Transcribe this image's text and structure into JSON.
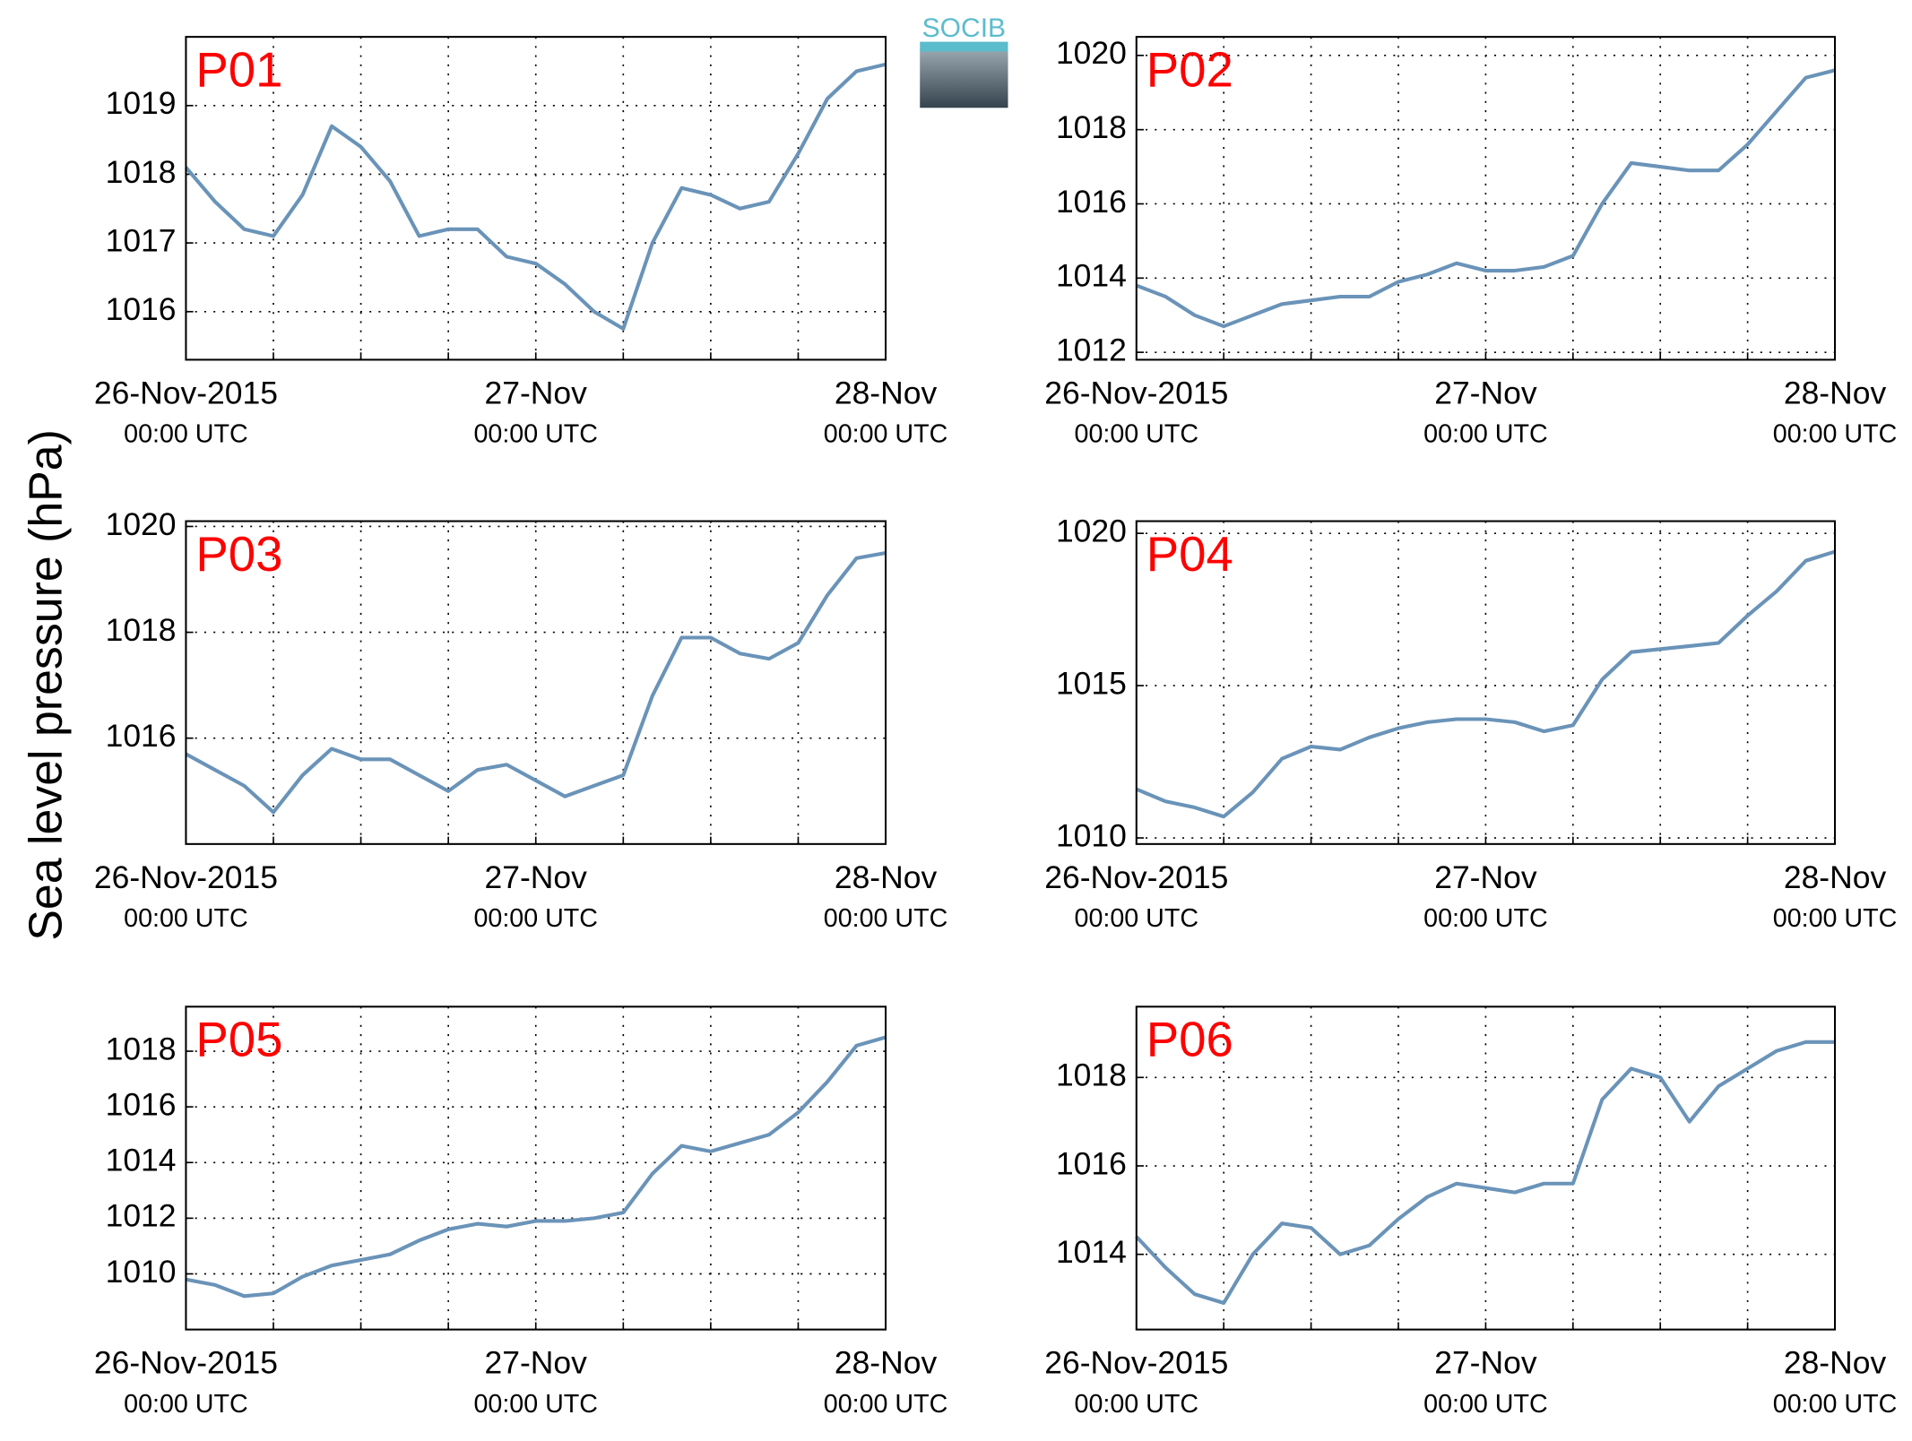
{
  "ylabel": "Sea level pressure (hPa)",
  "logo": "SOCIB",
  "chart_data": [
    {
      "type": "line",
      "title": "P01",
      "color": "#6a93b8",
      "grid": true,
      "x": [
        0,
        2,
        4,
        6,
        8,
        10,
        12,
        14,
        16,
        18,
        20,
        22,
        24,
        26,
        28,
        30,
        32,
        34,
        36,
        38,
        40,
        42,
        44,
        46,
        48
      ],
      "values": [
        1018.1,
        1017.6,
        1017.2,
        1017.1,
        1017.7,
        1018.7,
        1018.4,
        1017.9,
        1017.1,
        1017.2,
        1017.2,
        1016.8,
        1016.7,
        1016.4,
        1016.0,
        1015.75,
        1017.0,
        1017.8,
        1017.7,
        1017.5,
        1017.6,
        1018.3,
        1019.1,
        1019.5,
        1019.6
      ],
      "xlim": [
        0,
        48
      ],
      "xticks": [
        {
          "value": 0,
          "label": "26-Nov-2015",
          "sublabel": "00:00 UTC"
        },
        {
          "value": 6,
          "label": null
        },
        {
          "value": 12,
          "label": null
        },
        {
          "value": 18,
          "label": null
        },
        {
          "value": 24,
          "label": "27-Nov",
          "sublabel": "00:00 UTC"
        },
        {
          "value": 30,
          "label": null
        },
        {
          "value": 36,
          "label": null
        },
        {
          "value": 42,
          "label": null
        },
        {
          "value": 48,
          "label": "28-Nov",
          "sublabel": "00:00 UTC"
        }
      ],
      "ylim": [
        1015.3,
        1020
      ],
      "yticks": [
        1016,
        1017,
        1018,
        1019
      ]
    },
    {
      "type": "line",
      "title": "P02",
      "color": "#6a93b8",
      "grid": true,
      "x": [
        0,
        2,
        4,
        6,
        8,
        10,
        12,
        14,
        16,
        18,
        20,
        22,
        24,
        26,
        28,
        30,
        32,
        34,
        36,
        38,
        40,
        42,
        44,
        46,
        48
      ],
      "values": [
        1013.8,
        1013.5,
        1013.0,
        1012.7,
        1013.0,
        1013.3,
        1013.4,
        1013.5,
        1013.5,
        1013.9,
        1014.1,
        1014.4,
        1014.2,
        1014.2,
        1014.3,
        1014.6,
        1016.0,
        1017.1,
        1017.0,
        1016.9,
        1016.9,
        1017.6,
        1018.5,
        1019.4,
        1019.6
      ],
      "xlim": [
        0,
        48
      ],
      "xticks": [
        {
          "value": 0,
          "label": "26-Nov-2015",
          "sublabel": "00:00 UTC"
        },
        {
          "value": 6,
          "label": null
        },
        {
          "value": 12,
          "label": null
        },
        {
          "value": 18,
          "label": null
        },
        {
          "value": 24,
          "label": "27-Nov",
          "sublabel": "00:00 UTC"
        },
        {
          "value": 30,
          "label": null
        },
        {
          "value": 36,
          "label": null
        },
        {
          "value": 42,
          "label": null
        },
        {
          "value": 48,
          "label": "28-Nov",
          "sublabel": "00:00 UTC"
        }
      ],
      "ylim": [
        1011.8,
        1020.5
      ],
      "yticks": [
        1012,
        1014,
        1016,
        1018,
        1020
      ]
    },
    {
      "type": "line",
      "title": "P03",
      "color": "#6a93b8",
      "grid": true,
      "x": [
        0,
        2,
        4,
        6,
        8,
        10,
        12,
        14,
        16,
        18,
        20,
        22,
        24,
        26,
        28,
        30,
        32,
        34,
        36,
        38,
        40,
        42,
        44,
        46,
        48
      ],
      "values": [
        1015.7,
        1015.4,
        1015.1,
        1014.6,
        1015.3,
        1015.8,
        1015.6,
        1015.6,
        1015.3,
        1015.0,
        1015.4,
        1015.5,
        1015.2,
        1014.9,
        1015.1,
        1015.3,
        1016.8,
        1017.9,
        1017.9,
        1017.6,
        1017.5,
        1017.8,
        1018.7,
        1019.4,
        1019.5
      ],
      "xlim": [
        0,
        48
      ],
      "xticks": [
        {
          "value": 0,
          "label": "26-Nov-2015",
          "sublabel": "00:00 UTC"
        },
        {
          "value": 6,
          "label": null
        },
        {
          "value": 12,
          "label": null
        },
        {
          "value": 18,
          "label": null
        },
        {
          "value": 24,
          "label": "27-Nov",
          "sublabel": "00:00 UTC"
        },
        {
          "value": 30,
          "label": null
        },
        {
          "value": 36,
          "label": null
        },
        {
          "value": 42,
          "label": null
        },
        {
          "value": 48,
          "label": "28-Nov",
          "sublabel": "00:00 UTC"
        }
      ],
      "ylim": [
        1014,
        1020.1
      ],
      "yticks": [
        1016,
        1018,
        1020
      ]
    },
    {
      "type": "line",
      "title": "P04",
      "color": "#6a93b8",
      "grid": true,
      "x": [
        0,
        2,
        4,
        6,
        8,
        10,
        12,
        14,
        16,
        18,
        20,
        22,
        24,
        26,
        28,
        30,
        32,
        34,
        36,
        38,
        40,
        42,
        44,
        46,
        48
      ],
      "values": [
        1011.6,
        1011.2,
        1011.0,
        1010.7,
        1011.5,
        1012.6,
        1013.0,
        1012.9,
        1013.3,
        1013.6,
        1013.8,
        1013.9,
        1013.9,
        1013.8,
        1013.5,
        1013.7,
        1015.2,
        1016.1,
        1016.2,
        1016.3,
        1016.4,
        1017.3,
        1018.1,
        1019.1,
        1019.4
      ],
      "xlim": [
        0,
        48
      ],
      "xticks": [
        {
          "value": 0,
          "label": "26-Nov-2015",
          "sublabel": "00:00 UTC"
        },
        {
          "value": 6,
          "label": null
        },
        {
          "value": 12,
          "label": null
        },
        {
          "value": 18,
          "label": null
        },
        {
          "value": 24,
          "label": "27-Nov",
          "sublabel": "00:00 UTC"
        },
        {
          "value": 30,
          "label": null
        },
        {
          "value": 36,
          "label": null
        },
        {
          "value": 42,
          "label": null
        },
        {
          "value": 48,
          "label": "28-Nov",
          "sublabel": "00:00 UTC"
        }
      ],
      "ylim": [
        1009.8,
        1020.4
      ],
      "yticks": [
        1010,
        1015,
        1020
      ]
    },
    {
      "type": "line",
      "title": "P05",
      "color": "#6a93b8",
      "grid": true,
      "x": [
        0,
        2,
        4,
        6,
        8,
        10,
        12,
        14,
        16,
        18,
        20,
        22,
        24,
        26,
        28,
        30,
        32,
        34,
        36,
        38,
        40,
        42,
        44,
        46,
        48
      ],
      "values": [
        1009.8,
        1009.6,
        1009.2,
        1009.3,
        1009.9,
        1010.3,
        1010.5,
        1010.7,
        1011.2,
        1011.6,
        1011.8,
        1011.7,
        1011.9,
        1011.9,
        1012.0,
        1012.2,
        1013.6,
        1014.6,
        1014.4,
        1014.7,
        1015.0,
        1015.8,
        1016.9,
        1018.2,
        1018.5
      ],
      "xlim": [
        0,
        48
      ],
      "xticks": [
        {
          "value": 0,
          "label": "26-Nov-2015",
          "sublabel": "00:00 UTC"
        },
        {
          "value": 6,
          "label": null
        },
        {
          "value": 12,
          "label": null
        },
        {
          "value": 18,
          "label": null
        },
        {
          "value": 24,
          "label": "27-Nov",
          "sublabel": "00:00 UTC"
        },
        {
          "value": 30,
          "label": null
        },
        {
          "value": 36,
          "label": null
        },
        {
          "value": 42,
          "label": null
        },
        {
          "value": 48,
          "label": "28-Nov",
          "sublabel": "00:00 UTC"
        }
      ],
      "ylim": [
        1008,
        1019.6
      ],
      "yticks": [
        1010,
        1012,
        1014,
        1016,
        1018
      ]
    },
    {
      "type": "line",
      "title": "P06",
      "color": "#6a93b8",
      "grid": true,
      "x": [
        0,
        2,
        4,
        6,
        8,
        10,
        12,
        14,
        16,
        18,
        20,
        22,
        24,
        26,
        28,
        30,
        32,
        34,
        36,
        38,
        40,
        42,
        44,
        46,
        48
      ],
      "values": [
        1014.4,
        1013.7,
        1013.1,
        1012.9,
        1014.0,
        1014.7,
        1014.6,
        1014.0,
        1014.2,
        1014.8,
        1015.3,
        1015.6,
        1015.5,
        1015.4,
        1015.6,
        1015.6,
        1017.5,
        1018.2,
        1018.0,
        1017.0,
        1017.8,
        1018.2,
        1018.6,
        1018.8,
        1018.8
      ],
      "xlim": [
        0,
        48
      ],
      "xticks": [
        {
          "value": 0,
          "label": "26-Nov-2015",
          "sublabel": "00:00 UTC"
        },
        {
          "value": 6,
          "label": null
        },
        {
          "value": 12,
          "label": null
        },
        {
          "value": 18,
          "label": null
        },
        {
          "value": 24,
          "label": "27-Nov",
          "sublabel": "00:00 UTC"
        },
        {
          "value": 30,
          "label": null
        },
        {
          "value": 36,
          "label": null
        },
        {
          "value": 42,
          "label": null
        },
        {
          "value": 48,
          "label": "28-Nov",
          "sublabel": "00:00 UTC"
        }
      ],
      "ylim": [
        1012.3,
        1019.6
      ],
      "yticks": [
        1014,
        1016,
        1018
      ]
    }
  ]
}
